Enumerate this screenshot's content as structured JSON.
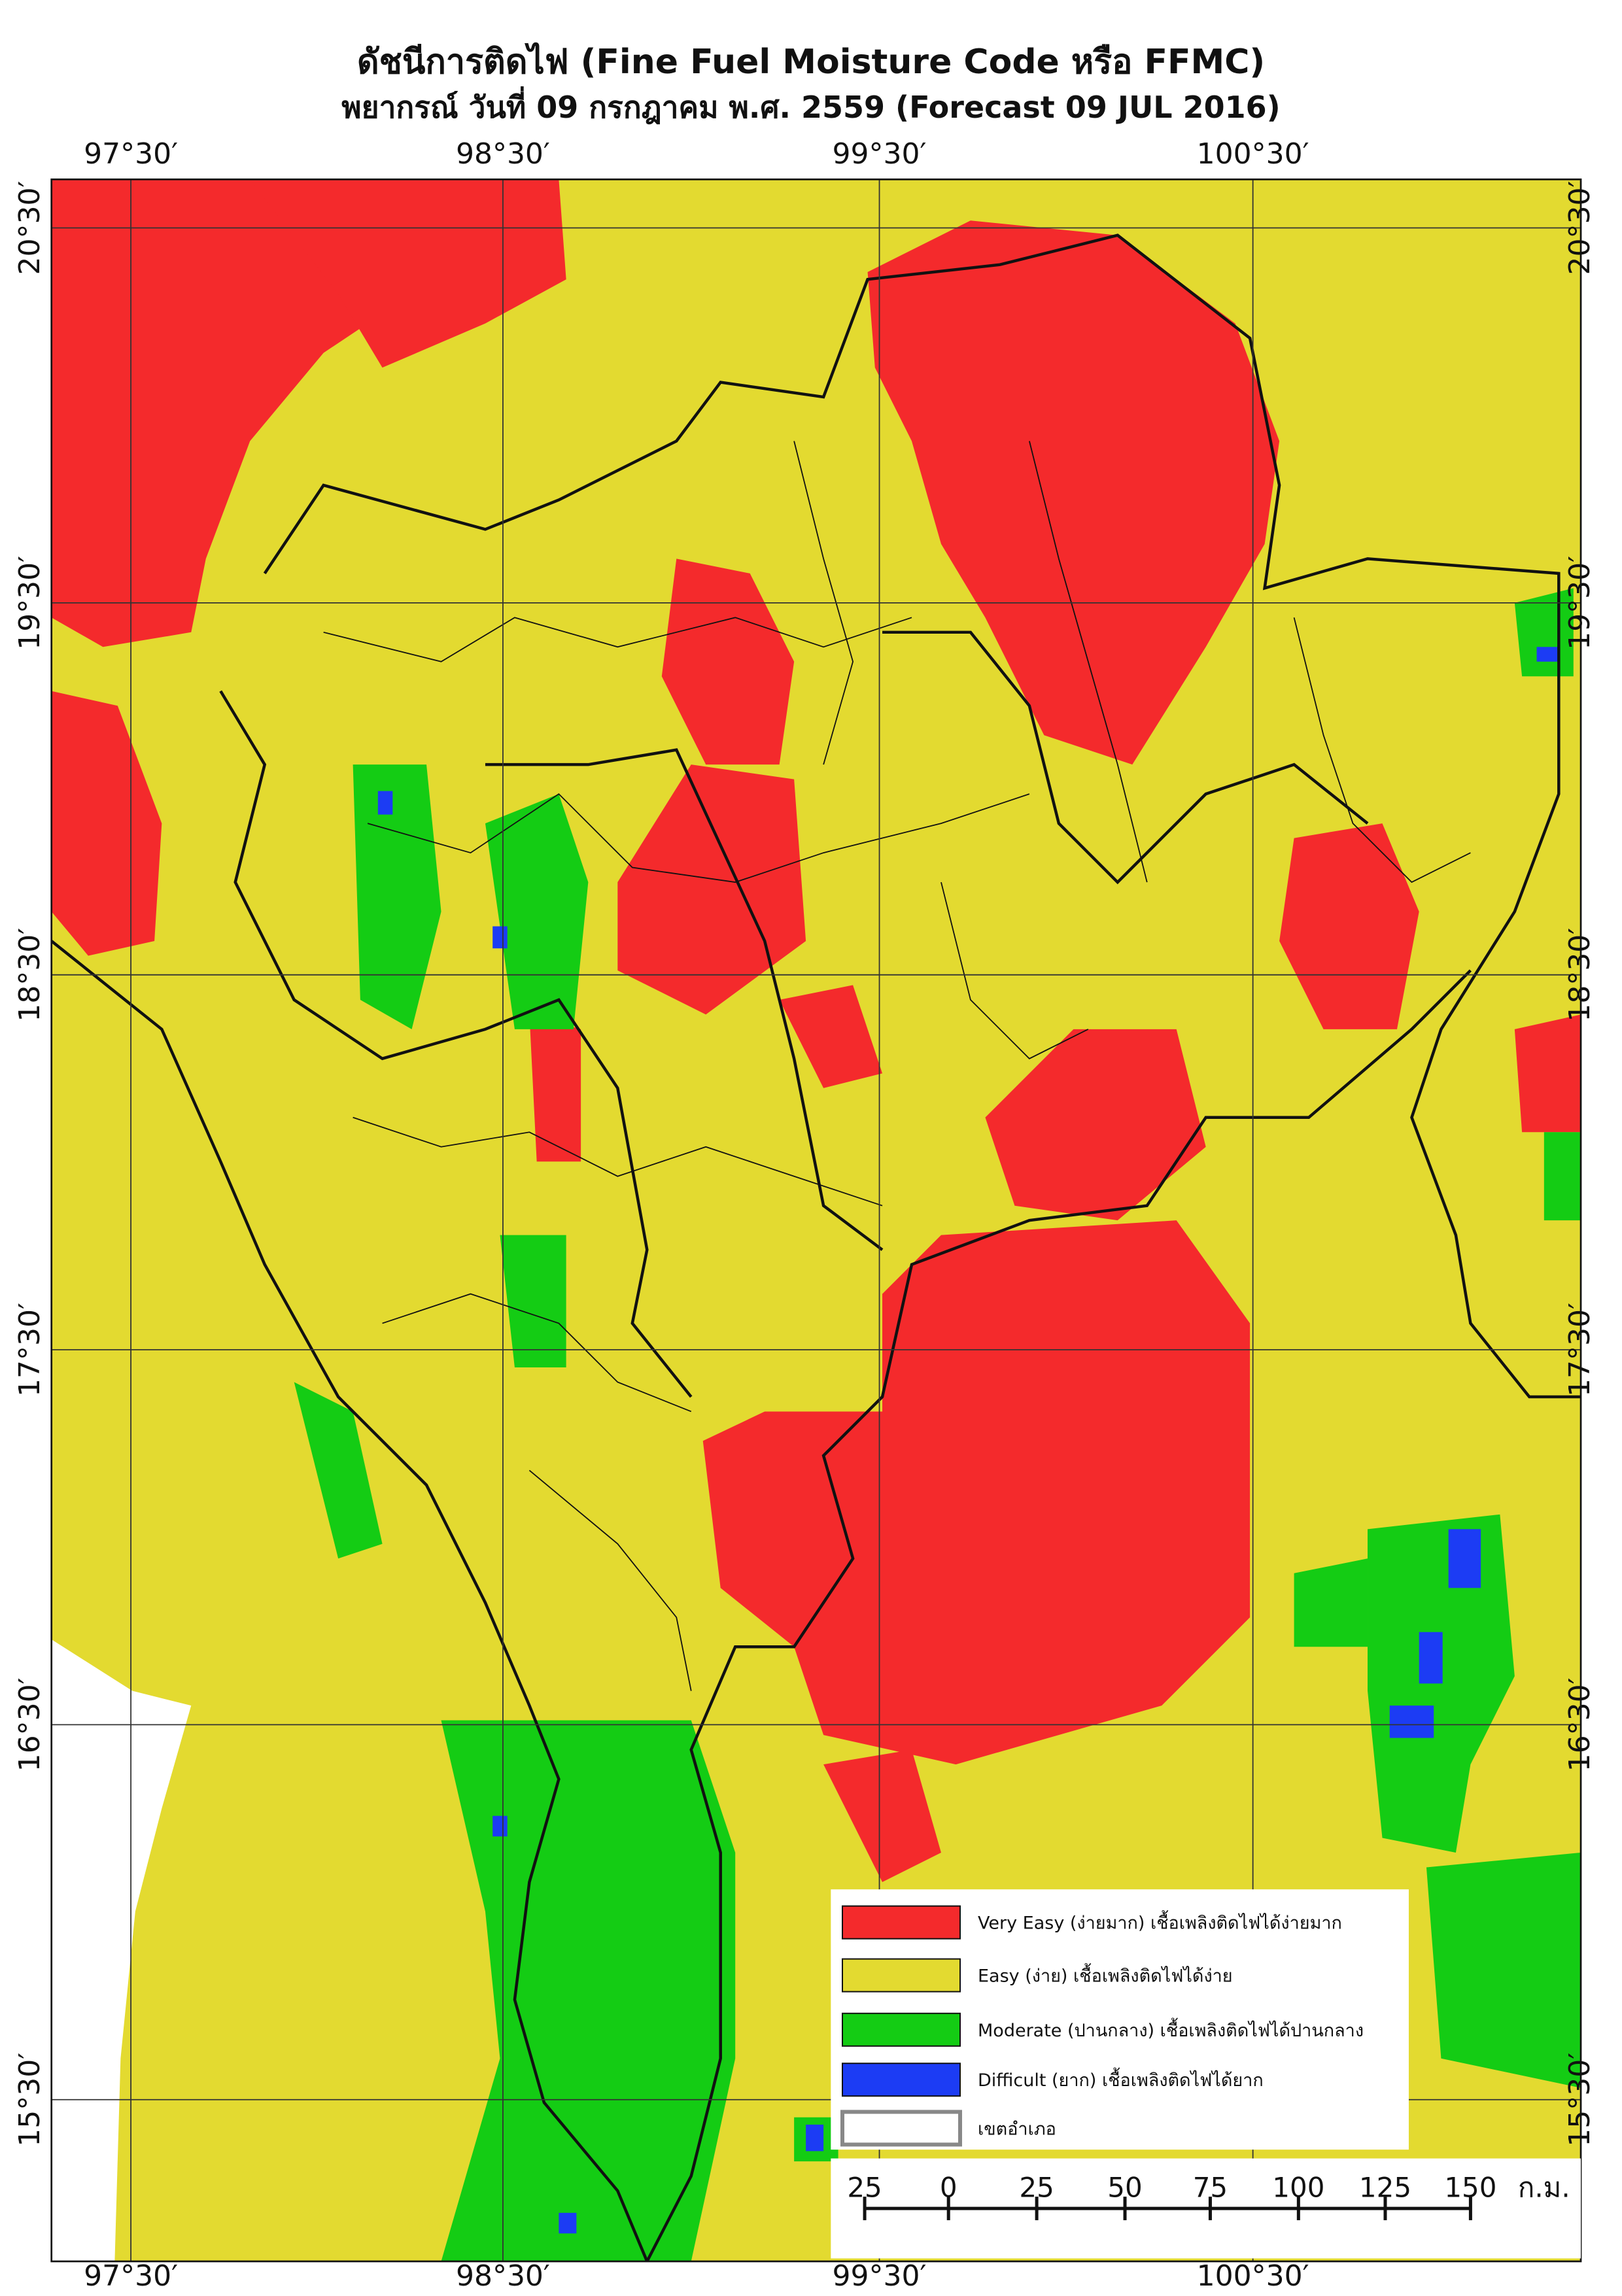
{
  "header": {
    "title": "ดัชนีการติดไฟ (Fine Fuel Moisture Code หรือ FFMC)",
    "subtitle": "พยากรณ์ วันที่ 09 กรกฎาคม พ.ศ. 2559 (Forecast 09 JUL 2016)"
  },
  "map": {
    "top_labels": [
      "97°30′",
      "98°30′",
      "99°30′",
      "100°30′"
    ],
    "bottom_labels": [
      "97°30′",
      "98°30′",
      "99°30′",
      "100°30′"
    ],
    "left_labels": [
      "20°30′",
      "19°30′",
      "18°30′",
      "17°30′",
      "16°30′",
      "15°30′"
    ],
    "right_labels": [
      "20°30′",
      "19°30′",
      "18°30′",
      "17°30′",
      "16°30′",
      "15°30′"
    ]
  },
  "legend": {
    "items": [
      {
        "label": "Very Easy (ง่ายมาก) เชื้อเพลิงติดไฟได้ง่ายมาก",
        "color": "#f42a2c"
      },
      {
        "label": "Easy (ง่าย) เชื้อเพลิงติดไฟได้ง่าย",
        "color": "#e3da30"
      },
      {
        "label": "Moderate (ปานกลาง) เชื้อเพลิงติดไฟได้ปานกลาง",
        "color": "#14cc14"
      },
      {
        "label": "Difficult (ยาก) เชื้อเพลิงติดไฟได้ยาก",
        "color": "#1c3cf4"
      },
      {
        "label": "เขตอำเภอ",
        "color": "#ffffff"
      }
    ]
  },
  "scale_bar": {
    "labels": [
      "25",
      "0",
      "25",
      "50",
      "75",
      "100",
      "125",
      "150"
    ],
    "unit": "ก.ม."
  }
}
